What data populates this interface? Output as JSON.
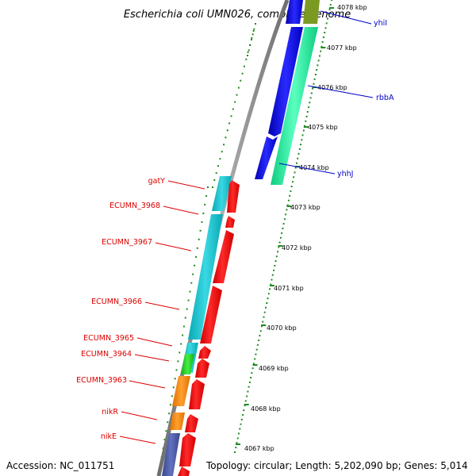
{
  "title": "Escherichia coli UMN026, complete genome",
  "accession": "Accession: NC_011751",
  "topology": "Topology: circular; Length: 5,202,090 bp; Genes: 5,014",
  "colors": {
    "backbone": "#8c8c8c",
    "ticks": "#1f8a1f",
    "cyan_gene": "#14c2cc",
    "red_gene": "#ff0000",
    "blue_gene": "#0a0aee",
    "spring_gene": "#22ee9a",
    "orange_gene": "#ff8c00",
    "green_gene": "#22cc22",
    "slate_gene": "#4a5aa0",
    "olive_gene": "#7a9a22",
    "left_label": "#dd0000",
    "right_label": "#0000cc"
  },
  "scale_labels": [
    "4067 kbp",
    "4068 kbp",
    "4069 kbp",
    "4070 kbp",
    "4071 kbp",
    "4072 kbp",
    "4073 kbp",
    "4074 kbp",
    "4075 kbp",
    "4076 kbp",
    "4077 kbp",
    "4078 kbp"
  ],
  "left_genes": [
    "gatY",
    "ECUMN_3968",
    "ECUMN_3967",
    "ECUMN_3966",
    "ECUMN_3965",
    "ECUMN_3964",
    "ECUMN_3963",
    "nikR",
    "nikE"
  ],
  "right_genes": [
    "yhiI",
    "rbbA",
    "yhhJ"
  ]
}
